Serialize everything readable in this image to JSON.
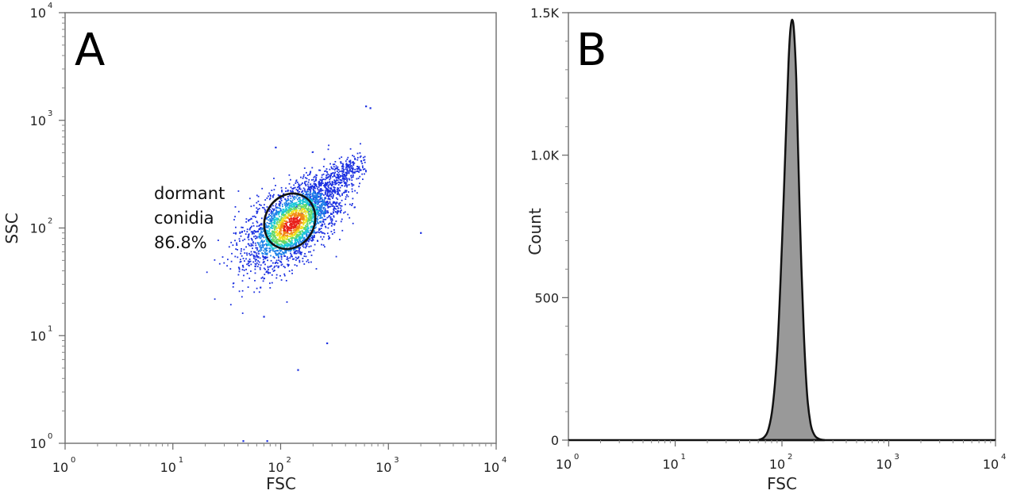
{
  "chart_data": [
    {
      "panel_label": "A",
      "type": "scatter",
      "xlabel": "FSC",
      "ylabel": "SSC",
      "x_scale": "log",
      "y_scale": "log",
      "xlim": [
        1,
        10000
      ],
      "ylim": [
        1,
        10000
      ],
      "x_ticks": [
        {
          "base": "10",
          "exp": "0"
        },
        {
          "base": "10",
          "exp": "1"
        },
        {
          "base": "10",
          "exp": "2"
        },
        {
          "base": "10",
          "exp": "3"
        },
        {
          "base": "10",
          "exp": "4"
        }
      ],
      "y_ticks": [
        {
          "base": "10",
          "exp": "0"
        },
        {
          "base": "10",
          "exp": "1"
        },
        {
          "base": "10",
          "exp": "2"
        },
        {
          "base": "10",
          "exp": "3"
        },
        {
          "base": "10",
          "exp": "4"
        }
      ],
      "density_center": {
        "x": 125,
        "y": 110
      },
      "points": [
        {
          "x": 45,
          "y": 1.05
        },
        {
          "x": 75,
          "y": 1.05
        },
        {
          "x": 145,
          "y": 4.8
        },
        {
          "x": 270,
          "y": 8.5
        },
        {
          "x": 70,
          "y": 15
        },
        {
          "x": 65,
          "y": 28
        },
        {
          "x": 2000,
          "y": 90
        },
        {
          "x": 90,
          "y": 560
        },
        {
          "x": 680,
          "y": 1300
        },
        {
          "x": 620,
          "y": 1350
        }
      ],
      "gate": {
        "name_lines": [
          "dormant",
          "conidia"
        ],
        "percent": "86.8%",
        "center": {
          "x": 135,
          "y": 115
        },
        "shape": "ellipse"
      },
      "grid": false,
      "legend": "none"
    },
    {
      "panel_label": "B",
      "type": "area",
      "xlabel": "FSC",
      "ylabel": "Count",
      "x_scale": "log",
      "xlim": [
        1,
        10000
      ],
      "ylim": [
        0,
        1500
      ],
      "x_ticks": [
        {
          "base": "10",
          "exp": "0"
        },
        {
          "base": "10",
          "exp": "1"
        },
        {
          "base": "10",
          "exp": "2"
        },
        {
          "base": "10",
          "exp": "3"
        },
        {
          "base": "10",
          "exp": "4"
        }
      ],
      "y_ticks": [
        "0",
        "500",
        "1.0K",
        "1.5K"
      ],
      "y_tick_values": [
        0,
        500,
        1000,
        1500
      ],
      "x": [
        60,
        68,
        75,
        82,
        90,
        97,
        104,
        110,
        115,
        120,
        125,
        130,
        136,
        142,
        150,
        160,
        172,
        185,
        200,
        220,
        250
      ],
      "y": [
        0,
        10,
        40,
        120,
        300,
        560,
        860,
        1120,
        1320,
        1440,
        1475,
        1430,
        1270,
        1000,
        680,
        380,
        160,
        60,
        20,
        5,
        0
      ],
      "fill_color": "#999999",
      "line_color": "#111111",
      "grid": false,
      "legend": "none"
    }
  ]
}
